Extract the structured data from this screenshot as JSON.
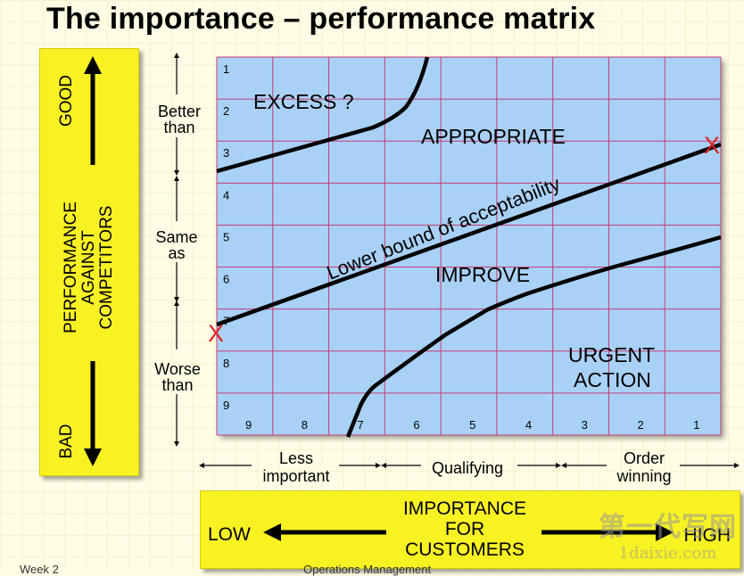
{
  "title": "The importance – performance matrix",
  "performance_axis": {
    "label": "PERFORMANCE\nAGAINST\nCOMPETITORS",
    "good": "GOOD",
    "bad": "BAD",
    "bands": [
      "Better\nthan",
      "Same\nas",
      "Worse\nthan"
    ]
  },
  "importance_axis": {
    "label": "IMPORTANCE\nFOR\nCUSTOMERS",
    "low": "LOW",
    "high": "HIGH",
    "bands": [
      "Less\nimportant",
      "Qualifying",
      "Order\nwinning"
    ]
  },
  "matrix": {
    "row_numbers": [
      "1",
      "2",
      "3",
      "4",
      "5",
      "6",
      "7",
      "8",
      "9"
    ],
    "col_numbers": [
      "9",
      "8",
      "7",
      "6",
      "5",
      "4",
      "3",
      "2",
      "1"
    ],
    "regions": {
      "excess": "EXCESS ?",
      "appropriate": "APPROPRIATE",
      "improve": "IMPROVE",
      "urgent": "URGENT\nACTION"
    },
    "boundary_label": "Lower bound of acceptability",
    "markers": [
      "X",
      "X"
    ],
    "colors": {
      "fill": "#a9d1f6",
      "grid": "#c43c74",
      "marker": "#e02020",
      "panel": "#f9f223"
    }
  },
  "footer": {
    "left": "Week 2",
    "center": "Operations Management"
  },
  "watermark": {
    "line1": "第一代写网",
    "line2": "1daixie.com"
  }
}
